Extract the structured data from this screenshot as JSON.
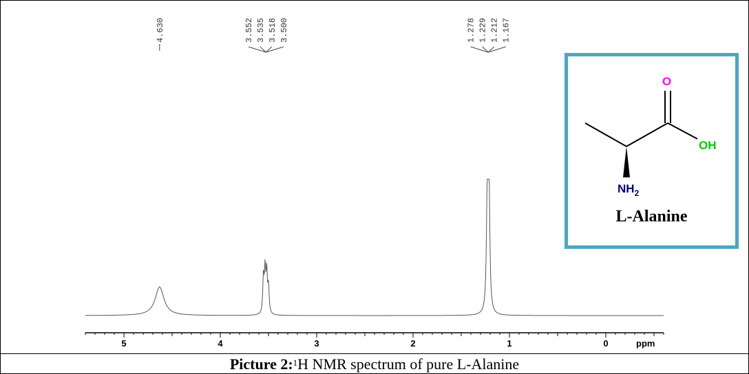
{
  "caption": {
    "label": "Picture 2:",
    "superscript": "1",
    "text": "H NMR spectrum of pure L-Alanine"
  },
  "molecule": {
    "name": "L-Alanine",
    "atom_o": "O",
    "atom_oh": "OH",
    "atom_nh": "NH",
    "atom_nh_sub": "2",
    "color_o": "#ff00ff",
    "color_oh": "#00cc00",
    "color_n": "#000080",
    "frame_color": "#4aa7c3"
  },
  "chart_data": {
    "type": "line",
    "title": "",
    "xlabel": "ppm",
    "ylabel": "",
    "x_reversed": true,
    "xlim": [
      5.4,
      -0.6
    ],
    "x_ticks": [
      "5",
      "4",
      "3",
      "2",
      "1",
      "0"
    ],
    "x_tick_values": [
      5,
      4,
      3,
      2,
      1,
      0
    ],
    "peak_labels": [
      {
        "group": "a",
        "values": [
          "4.630"
        ],
        "at": 4.63
      },
      {
        "group": "b",
        "values": [
          "3.552",
          "3.535",
          "3.518",
          "3.500"
        ],
        "at": 3.526
      },
      {
        "group": "c",
        "values": [
          "1.278",
          "1.229",
          "1.212",
          "1.167"
        ],
        "at": 1.22
      }
    ],
    "peaks": [
      {
        "shift": 4.63,
        "height": 0.22,
        "width": 0.055
      },
      {
        "shift": 3.552,
        "height": 0.28,
        "width": 0.008
      },
      {
        "shift": 3.535,
        "height": 0.32,
        "width": 0.008
      },
      {
        "shift": 3.518,
        "height": 0.3,
        "width": 0.008
      },
      {
        "shift": 3.5,
        "height": 0.2,
        "width": 0.008
      },
      {
        "shift": 1.229,
        "height": 0.98,
        "width": 0.01
      },
      {
        "shift": 1.212,
        "height": 0.92,
        "width": 0.01
      }
    ]
  }
}
